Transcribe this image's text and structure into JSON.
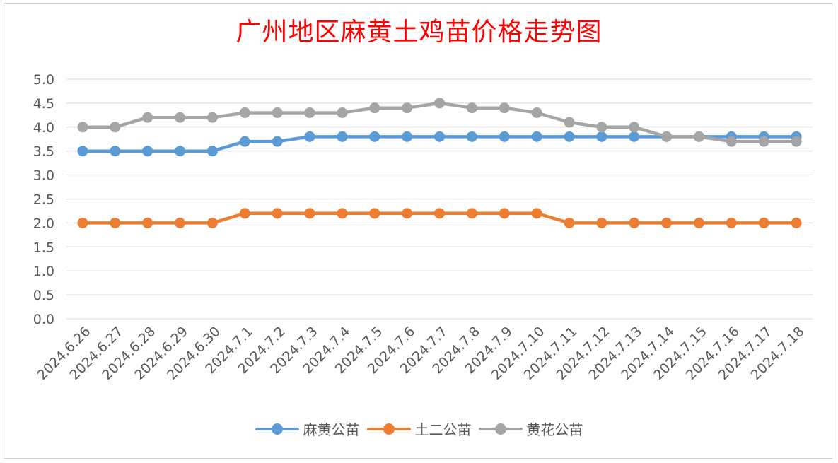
{
  "chart_data": {
    "type": "line",
    "title": "广州地区麻黄土鸡苗价格走势图",
    "xlabel": "",
    "ylabel": "",
    "ylim": [
      0,
      5
    ],
    "y_ticks": [
      "0.0",
      "0.5",
      "1.0",
      "1.5",
      "2.0",
      "2.5",
      "3.0",
      "3.5",
      "4.0",
      "4.5",
      "5.0"
    ],
    "grid": true,
    "legend_position": "bottom",
    "categories": [
      "2024.6.26",
      "2024.6.27",
      "2024.6.28",
      "2024.6.29",
      "2024.6.30",
      "2024.7.1",
      "2024.7.2",
      "2024.7.3",
      "2024.7.4",
      "2024.7.5",
      "2024.7.6",
      "2024.7.7",
      "2024.7.8",
      "2024.7.9",
      "2024.7.10",
      "2024.7.11",
      "2024.7.12",
      "2024.7.13",
      "2024.7.14",
      "2024.7.15",
      "2024.7.16",
      "2024.7.17",
      "2024.7.18"
    ],
    "series": [
      {
        "name": "麻黄公苗",
        "color": "#5b9bd5",
        "values": [
          3.5,
          3.5,
          3.5,
          3.5,
          3.5,
          3.7,
          3.7,
          3.8,
          3.8,
          3.8,
          3.8,
          3.8,
          3.8,
          3.8,
          3.8,
          3.8,
          3.8,
          3.8,
          3.8,
          3.8,
          3.8,
          3.8,
          3.8
        ]
      },
      {
        "name": "土二公苗",
        "color": "#ed7d31",
        "values": [
          2.0,
          2.0,
          2.0,
          2.0,
          2.0,
          2.2,
          2.2,
          2.2,
          2.2,
          2.2,
          2.2,
          2.2,
          2.2,
          2.2,
          2.2,
          2.0,
          2.0,
          2.0,
          2.0,
          2.0,
          2.0,
          2.0,
          2.0
        ]
      },
      {
        "name": "黄花公苗",
        "color": "#a5a5a5",
        "values": [
          4.0,
          4.0,
          4.2,
          4.2,
          4.2,
          4.3,
          4.3,
          4.3,
          4.3,
          4.4,
          4.4,
          4.5,
          4.4,
          4.4,
          4.3,
          4.1,
          4.0,
          4.0,
          3.8,
          3.8,
          3.7,
          3.7,
          3.7
        ]
      }
    ]
  }
}
